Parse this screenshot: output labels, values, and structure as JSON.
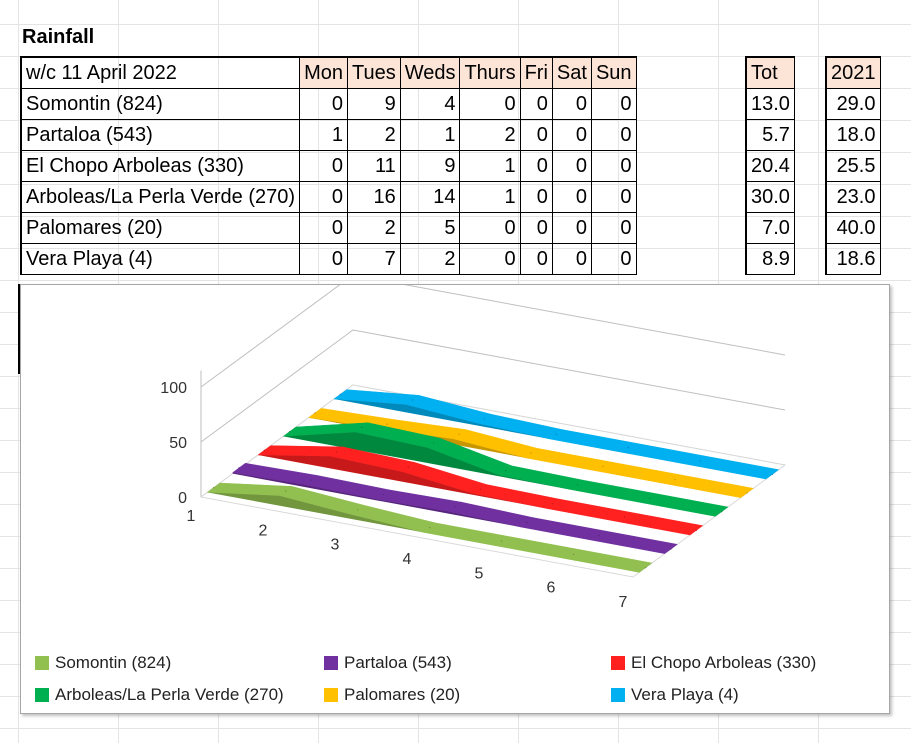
{
  "sheet": {
    "title": "Rainfall",
    "header": {
      "week": "w/c 11 April 2022",
      "days": [
        "Mon",
        "Tues",
        "Weds",
        "Thurs",
        "Fri",
        "Sat",
        "Sun"
      ],
      "tot": "Tot",
      "year": "2021"
    },
    "rows": [
      {
        "name": "Somontin (824)",
        "values": [
          "0",
          "9",
          "4",
          "0",
          "0",
          "0",
          "0"
        ],
        "tot": "13.0",
        "prev": "29.0"
      },
      {
        "name": "Partaloa (543)",
        "values": [
          "1",
          "2",
          "1",
          "2",
          "0",
          "0",
          "0"
        ],
        "tot": "5.7",
        "prev": "18.0"
      },
      {
        "name": "El Chopo Arboleas (330)",
        "values": [
          "0",
          "11",
          "9",
          "1",
          "0",
          "0",
          "0"
        ],
        "tot": "20.4",
        "prev": "25.5"
      },
      {
        "name": "Arboleas/La Perla Verde (270)",
        "values": [
          "0",
          "16",
          "14",
          "1",
          "0",
          "0",
          "0"
        ],
        "tot": "30.0",
        "prev": "23.0"
      },
      {
        "name": "Palomares (20)",
        "values": [
          "0",
          "2",
          "5",
          "0",
          "0",
          "0",
          "0"
        ],
        "tot": "7.0",
        "prev": "40.0"
      },
      {
        "name": "Vera Playa (4)",
        "values": [
          "0",
          "7",
          "2",
          "0",
          "0",
          "0",
          "0"
        ],
        "tot": "8.9",
        "prev": "18.6"
      }
    ]
  },
  "chart_data": {
    "type": "area",
    "variant": "3d-ribbon",
    "title": "",
    "xlabel": "",
    "ylabel": "",
    "x": [
      "1",
      "2",
      "3",
      "4",
      "5",
      "6",
      "7"
    ],
    "y_ticks": [
      "0",
      "50",
      "100"
    ],
    "ylim": [
      0,
      100
    ],
    "legend_position": "bottom",
    "series": [
      {
        "name": "Somontin (824)",
        "color": "#92c050",
        "values": [
          0,
          9,
          4,
          0,
          0,
          0,
          0
        ]
      },
      {
        "name": "Partaloa (543)",
        "color": "#7030a0",
        "values": [
          1,
          2,
          1,
          2,
          0,
          0,
          0
        ]
      },
      {
        "name": "El Chopo Arboleas (330)",
        "color": "#ff2020",
        "values": [
          0,
          11,
          9,
          1,
          0,
          0,
          0
        ]
      },
      {
        "name": "Arboleas/La Perla Verde (270)",
        "color": "#00b050",
        "values": [
          0,
          16,
          14,
          1,
          0,
          0,
          0
        ]
      },
      {
        "name": "Palomares (20)",
        "color": "#ffc000",
        "values": [
          0,
          2,
          5,
          0,
          0,
          0,
          0
        ]
      },
      {
        "name": "Vera Playa (4)",
        "color": "#00b0f0",
        "values": [
          0,
          7,
          2,
          0,
          0,
          0,
          0
        ]
      }
    ]
  }
}
